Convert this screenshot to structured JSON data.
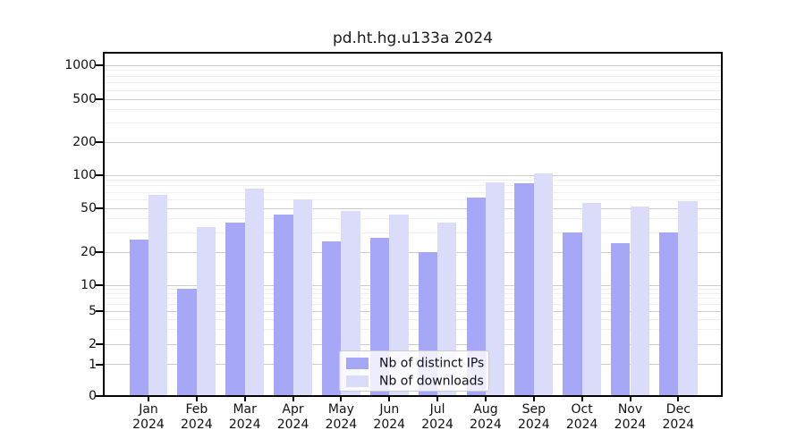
{
  "chart_data": {
    "type": "bar",
    "title": "pd.ht.hg.u133a 2024",
    "x_tick_labels": [
      {
        "month": "Jan",
        "year": "2024"
      },
      {
        "month": "Feb",
        "year": "2024"
      },
      {
        "month": "Mar",
        "year": "2024"
      },
      {
        "month": "Apr",
        "year": "2024"
      },
      {
        "month": "May",
        "year": "2024"
      },
      {
        "month": "Jun",
        "year": "2024"
      },
      {
        "month": "Jul",
        "year": "2024"
      },
      {
        "month": "Aug",
        "year": "2024"
      },
      {
        "month": "Sep",
        "year": "2024"
      },
      {
        "month": "Oct",
        "year": "2024"
      },
      {
        "month": "Nov",
        "year": "2024"
      },
      {
        "month": "Dec",
        "year": "2024"
      }
    ],
    "series": [
      {
        "name": "Nb of distinct IPs",
        "color": "#a7a7f7",
        "values": [
          26,
          9,
          37,
          44,
          25,
          27,
          20,
          63,
          85,
          30,
          24,
          30
        ]
      },
      {
        "name": "Nb of downloads",
        "color": "#dbdbfa",
        "values": [
          66,
          34,
          75,
          60,
          47,
          44,
          37,
          86,
          104,
          56,
          52,
          58
        ]
      }
    ],
    "y_axis": {
      "scale": "symlog",
      "ticks": [
        0,
        1,
        2,
        5,
        10,
        20,
        50,
        100,
        200,
        500,
        1000
      ],
      "minor_ticks": [
        3,
        4,
        6,
        7,
        8,
        9,
        30,
        40,
        60,
        70,
        80,
        90,
        300,
        400,
        600,
        700,
        800,
        900
      ]
    },
    "legend": {
      "position": "lower center",
      "labels": [
        "Nb of distinct IPs",
        "Nb of downloads"
      ]
    },
    "grid": true,
    "background": "#ffffff"
  }
}
